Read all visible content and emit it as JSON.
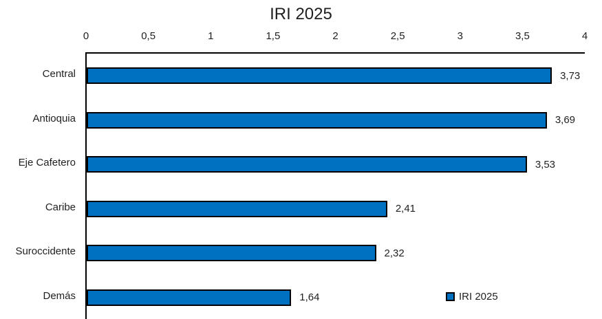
{
  "title": "IRI 2025",
  "legend": {
    "label": "IRI 2025"
  },
  "colors": {
    "bar_fill": "#0070C0",
    "bar_border": "#000000",
    "axis_line": "#000000",
    "text": "#1f1f1f"
  },
  "chart_data": {
    "type": "bar",
    "orientation": "horizontal",
    "title": "IRI 2025",
    "series_name": "IRI 2025",
    "categories": [
      "Central",
      "Antioquia",
      "Eje Cafetero",
      "Caribe",
      "Suroccidente",
      "Demás"
    ],
    "values": [
      3.73,
      3.69,
      3.53,
      2.41,
      2.32,
      1.64
    ],
    "value_labels": [
      "3,73",
      "3,69",
      "3,53",
      "2,41",
      "2,32",
      "1,64"
    ],
    "xlim": [
      0,
      4
    ],
    "x_ticks": [
      {
        "label": "0",
        "value": 0
      },
      {
        "label": "0,5",
        "value": 0.5
      },
      {
        "label": "1",
        "value": 1
      },
      {
        "label": "1,5",
        "value": 1.5
      },
      {
        "label": "2",
        "value": 2
      },
      {
        "label": "2,5",
        "value": 2.5
      },
      {
        "label": "3",
        "value": 3
      },
      {
        "label": "3,5",
        "value": 3.5
      },
      {
        "label": "4",
        "value": 4
      }
    ],
    "grid": false,
    "legend_position": "inside-bottom-right",
    "axis_position": "top"
  }
}
